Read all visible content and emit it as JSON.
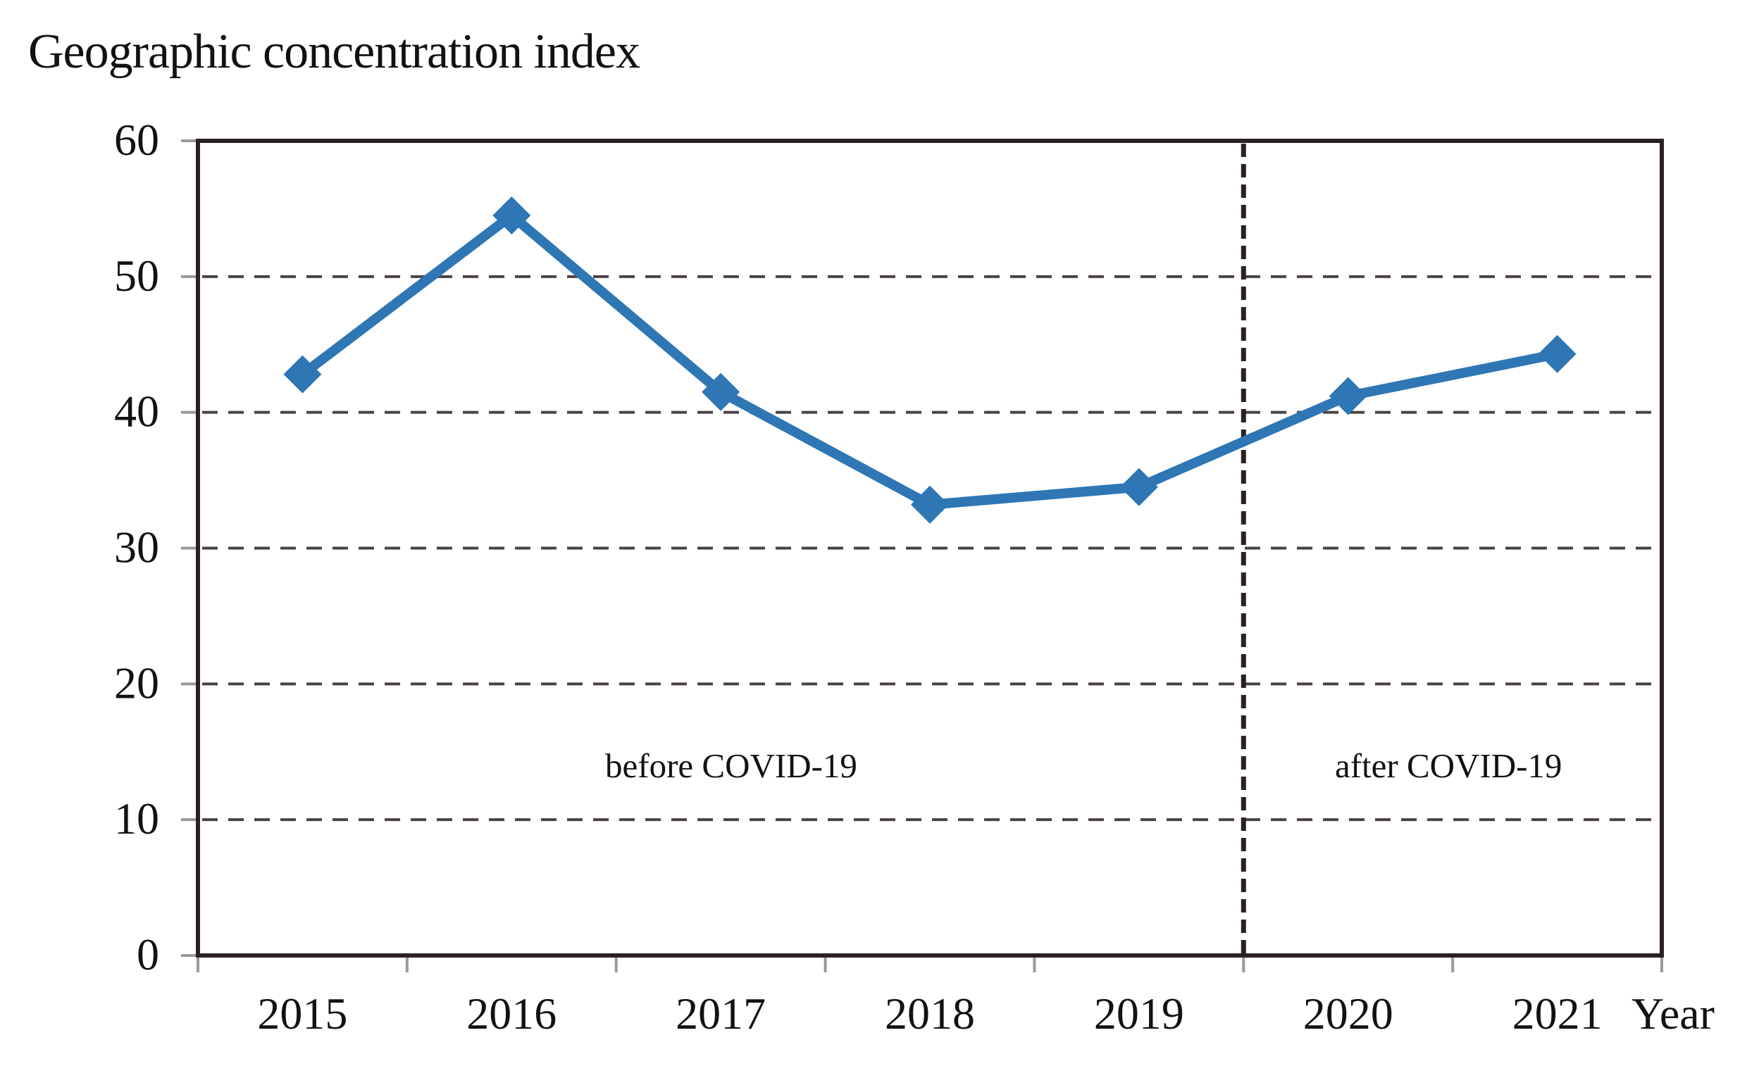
{
  "figure": {
    "title": "Geographic concentration index"
  },
  "chart_data": {
    "type": "line",
    "title": "Geographic concentration index",
    "categories": [
      "2015",
      "2016",
      "2017",
      "2018",
      "2019",
      "2020",
      "2021"
    ],
    "series": [
      {
        "name": "Geographic concentration index",
        "values": [
          42.8,
          54.5,
          41.5,
          33.2,
          34.5,
          41.2,
          44.3
        ],
        "marker": "diamond"
      }
    ],
    "xlabel": "Year",
    "ylabel": "Geographic concentration index",
    "ylim": [
      0,
      60
    ],
    "yticks": [
      0,
      10,
      20,
      30,
      40,
      50,
      60
    ],
    "grid": "horizontal-dashed",
    "legend": "none",
    "separator": {
      "type": "vline-dashed",
      "cat_index": 4.5
    },
    "annotations": [
      {
        "text": "before COVID-19",
        "cat_index": 2.05,
        "y": 14
      },
      {
        "text": "after COVID-19",
        "cat_index": 5.48,
        "y": 14
      }
    ],
    "colors": {
      "line": "#2e76b4",
      "frame": "#2b2123",
      "gridline": "#4a4245",
      "tick": "#9a9a9a",
      "text": "#151112"
    }
  }
}
